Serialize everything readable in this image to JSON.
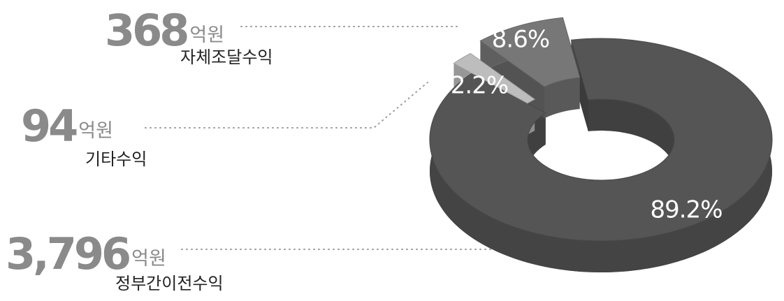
{
  "chart_data": {
    "type": "pie",
    "donut": true,
    "categories": [
      "자체조달수익",
      "기타수익",
      "정부간이전수익"
    ],
    "values": [
      8.6,
      2.2,
      89.2
    ],
    "value_labels": [
      "8.6%",
      "2.2%",
      "89.2%"
    ],
    "colors": [
      "#777777",
      "#bdbdbd",
      "#555555"
    ],
    "amounts": [
      368,
      94,
      3796
    ],
    "amount_labels": [
      "368",
      "94",
      "3,796"
    ],
    "unit": "억원"
  }
}
